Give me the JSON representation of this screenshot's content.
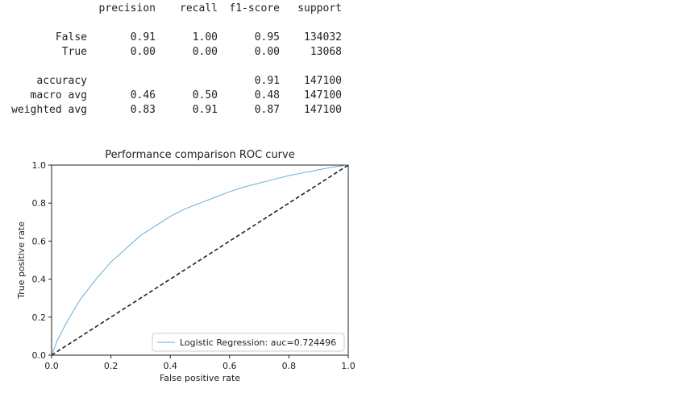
{
  "report": {
    "columns": [
      "precision",
      "recall",
      "f1-score",
      "support"
    ],
    "rows": [
      {
        "label": "False",
        "cells": [
          "0.91",
          "1.00",
          "0.95",
          "134032"
        ]
      },
      {
        "label": "True",
        "cells": [
          "0.00",
          "0.00",
          "0.00",
          "13068"
        ]
      },
      {
        "label": "accuracy",
        "cells": [
          "",
          "",
          "0.91",
          "147100"
        ]
      },
      {
        "label": "macro avg",
        "cells": [
          "0.46",
          "0.50",
          "0.48",
          "147100"
        ]
      },
      {
        "label": "weighted avg",
        "cells": [
          "0.83",
          "0.91",
          "0.87",
          "147100"
        ]
      }
    ]
  },
  "chart_data": {
    "type": "line",
    "title": "Performance comparison ROC curve",
    "xlabel": "False positive rate",
    "ylabel": "True positive rate",
    "xlim": [
      0.0,
      1.0
    ],
    "ylim": [
      0.0,
      1.0
    ],
    "xticks": [
      "0.0",
      "0.2",
      "0.4",
      "0.6",
      "0.8",
      "1.0"
    ],
    "yticks": [
      "0.0",
      "0.2",
      "0.4",
      "0.6",
      "0.8",
      "1.0"
    ],
    "grid": false,
    "legend_position": "lower-right",
    "series": [
      {
        "name": "Logistic Regression: auc=0.724496",
        "color": "#6baed6",
        "style": "solid",
        "x": [
          0.0,
          0.02,
          0.05,
          0.08,
          0.1,
          0.15,
          0.2,
          0.25,
          0.3,
          0.35,
          0.4,
          0.45,
          0.5,
          0.55,
          0.6,
          0.65,
          0.7,
          0.75,
          0.8,
          0.85,
          0.9,
          0.95,
          1.0
        ],
        "y": [
          0.0,
          0.08,
          0.17,
          0.25,
          0.3,
          0.4,
          0.49,
          0.56,
          0.63,
          0.68,
          0.73,
          0.77,
          0.8,
          0.83,
          0.86,
          0.885,
          0.905,
          0.925,
          0.945,
          0.96,
          0.975,
          0.99,
          1.0
        ]
      },
      {
        "name": "",
        "color": "#222222",
        "style": "dashed",
        "x": [
          0.0,
          1.0
        ],
        "y": [
          0.0,
          1.0
        ]
      }
    ]
  }
}
